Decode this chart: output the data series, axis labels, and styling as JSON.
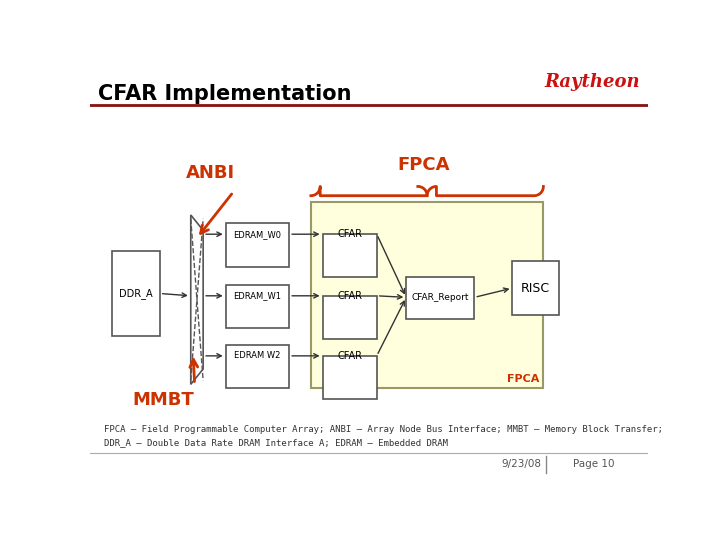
{
  "title": "CFAR Implementation",
  "title_fontsize": 15,
  "title_color": "#000000",
  "raytheon_text": "Raytheon",
  "raytheon_color": "#cc1111",
  "raytheon_fontsize": 13,
  "header_line_color": "#881111",
  "bg_color": "#ffffff",
  "anbi_label": "ANBI",
  "fpca_label": "FPCA",
  "mmbt_label": "MMBT",
  "orange_color": "#cc3300",
  "fpca_bg": "#ffffdd",
  "fpca_border": "#999966",
  "box_border": "#555555",
  "caption": "FPCA – Field Programmable Computer Array; ANBI – Array Node Bus Interface; MMBT – Memory Block Transfer;\nDDR_A – Double Data Rate DRAM Interface A; EDRAM – Embedded DRAM",
  "caption_fontsize": 6.5,
  "date_text": "9/23/08",
  "page_text": "Page 10",
  "footer_fontsize": 7.5,
  "ddr_label": "DDR_A",
  "risc_label": "RISC",
  "cfar_report_label": "CFAR_Report",
  "cfar_label": "CFAR",
  "edram_labels": [
    "EDRAM_W0",
    "EDRAM_W1",
    "EDRAM W2"
  ]
}
